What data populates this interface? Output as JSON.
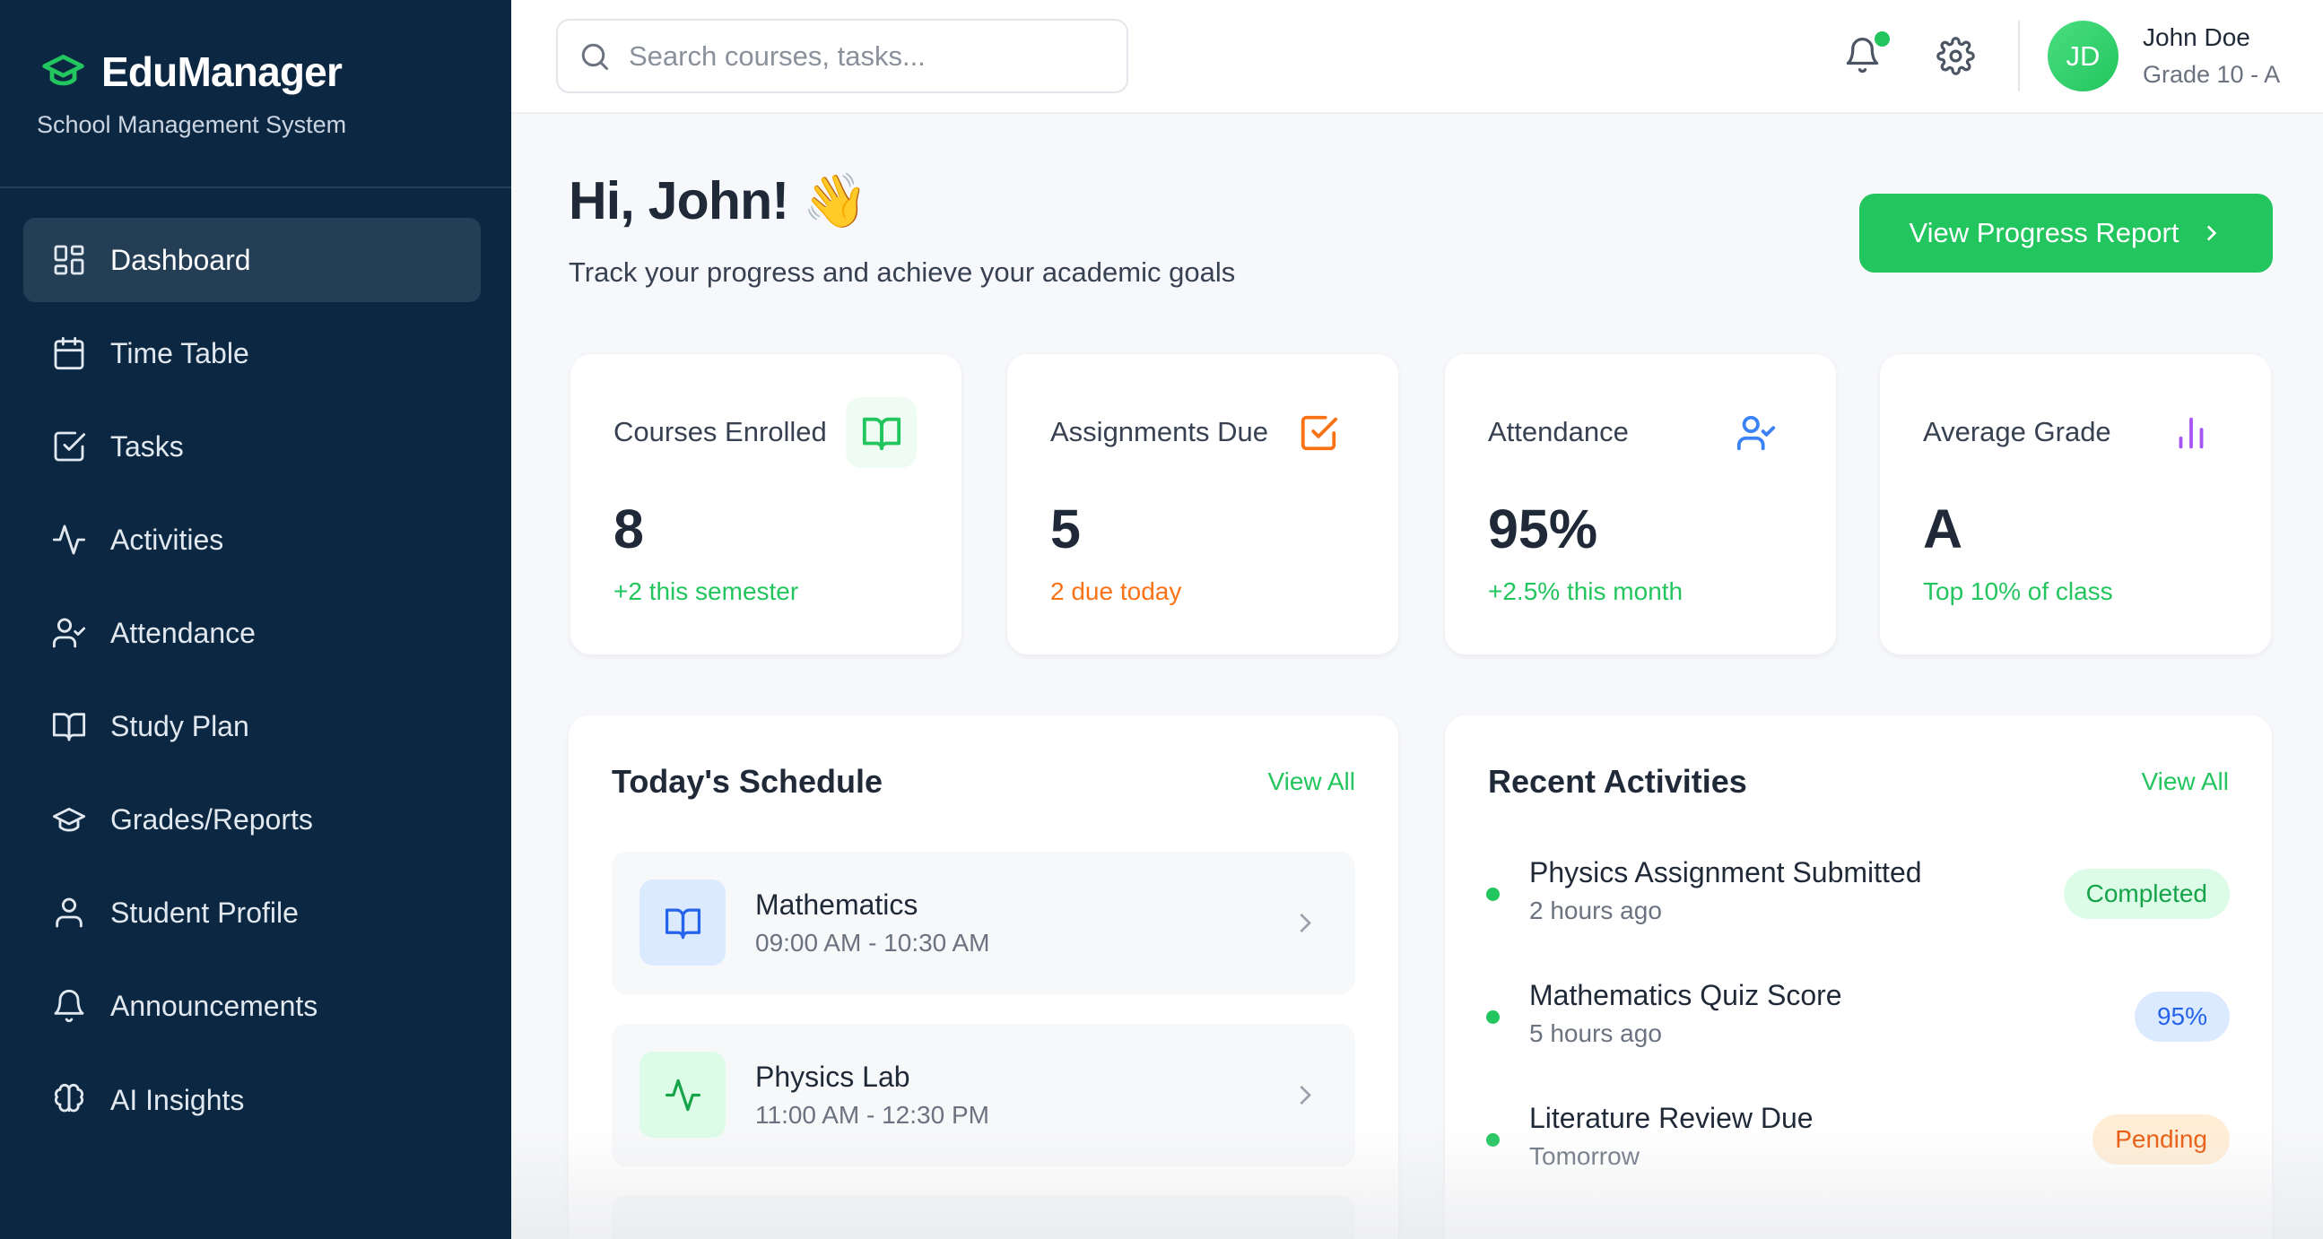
{
  "brand": {
    "title": "EduManager",
    "subtitle": "School Management System"
  },
  "nav": [
    {
      "label": "Dashboard",
      "icon": "dashboard-icon",
      "active": true
    },
    {
      "label": "Time Table",
      "icon": "calendar-icon"
    },
    {
      "label": "Tasks",
      "icon": "checkbox-icon"
    },
    {
      "label": "Activities",
      "icon": "activity-icon"
    },
    {
      "label": "Attendance",
      "icon": "user-check-icon"
    },
    {
      "label": "Study Plan",
      "icon": "book-icon"
    },
    {
      "label": "Grades/Reports",
      "icon": "graduation-cap-icon"
    },
    {
      "label": "Student Profile",
      "icon": "user-icon"
    },
    {
      "label": "Announcements",
      "icon": "bell-icon"
    },
    {
      "label": "AI Insights",
      "icon": "brain-icon"
    }
  ],
  "header": {
    "search_placeholder": "Search courses, tasks...",
    "user": {
      "initials": "JD",
      "name": "John Doe",
      "grade": "Grade 10 - A"
    }
  },
  "greeting": {
    "title": "Hi, John! 👋",
    "subtitle": "Track your progress and achieve your academic goals",
    "button": "View Progress Report"
  },
  "stats": [
    {
      "title": "Courses Enrolled",
      "value": "8",
      "sub": "+2 this semester",
      "color": "#22c55e"
    },
    {
      "title": "Assignments Due",
      "value": "5",
      "sub": "2 due today",
      "color": "#f97316"
    },
    {
      "title": "Attendance",
      "value": "95%",
      "sub": "+2.5% this month",
      "color": "#22c55e"
    },
    {
      "title": "Average Grade",
      "value": "A",
      "sub": "Top 10% of class",
      "color": "#22c55e"
    }
  ],
  "schedule": {
    "title": "Today's Schedule",
    "view_all": "View All",
    "items": [
      {
        "name": "Mathematics",
        "time": "09:00 AM - 10:30 AM"
      },
      {
        "name": "Physics Lab",
        "time": "11:00 AM - 12:30 PM"
      }
    ]
  },
  "activities": {
    "title": "Recent Activities",
    "view_all": "View All",
    "items": [
      {
        "name": "Physics Assignment Submitted",
        "time": "2 hours ago",
        "badge": "Completed"
      },
      {
        "name": "Mathematics Quiz Score",
        "time": "5 hours ago",
        "badge": "95%"
      },
      {
        "name": "Literature Review Due",
        "time": "Tomorrow",
        "badge": "Pending"
      }
    ]
  },
  "colors": {
    "sidebar": "#0c2741",
    "accent": "#22c55e",
    "orange": "#f97316",
    "blue": "#3b82f6",
    "purple": "#a855f7"
  }
}
